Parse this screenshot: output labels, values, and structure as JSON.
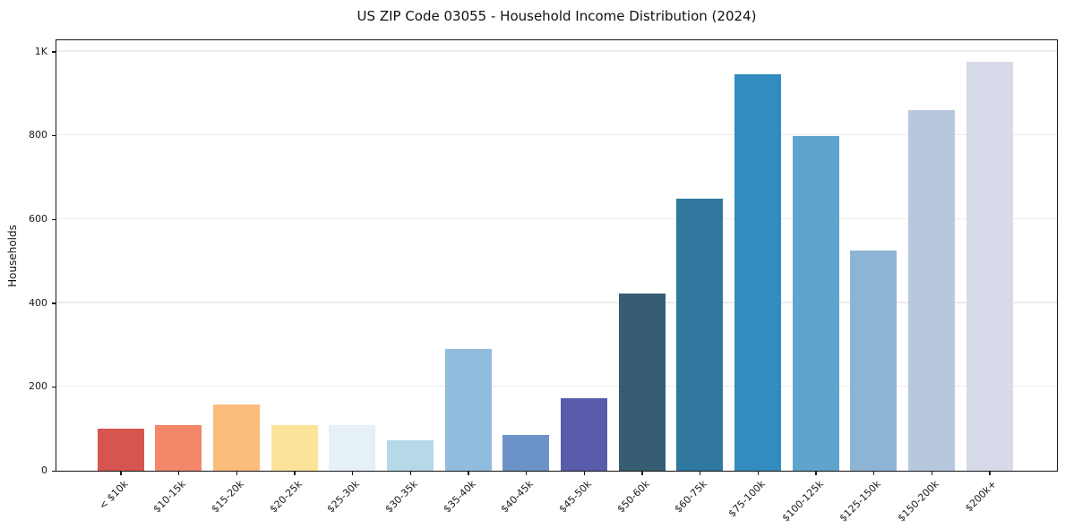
{
  "chart_data": {
    "type": "bar",
    "title": "US ZIP Code 03055 - Household Income Distribution (2024)",
    "xlabel": "",
    "ylabel": "Households",
    "categories": [
      "< $10k",
      "$10-15k",
      "$15-20k",
      "$20-25k",
      "$25-30k",
      "$30-35k",
      "$35-40k",
      "$40-45k",
      "$45-50k",
      "$50-60k",
      "$60-75k",
      "$75-100k",
      "$100-125k",
      "$125-150k",
      "$150-200k",
      "$200k+"
    ],
    "values": [
      100,
      108,
      157,
      110,
      108,
      72,
      291,
      85,
      172,
      423,
      649,
      947,
      799,
      526,
      860,
      976
    ],
    "bar_colors": [
      "#d6564f",
      "#f4876a",
      "#fbbc7c",
      "#fde299",
      "#e6f1f7",
      "#b5d9e9",
      "#90bcdd",
      "#6b93c7",
      "#5a5cab",
      "#365d72",
      "#30789d",
      "#338cc0",
      "#5ea4cd",
      "#8db4d4",
      "#b7c8de",
      "#d7dae8"
    ],
    "ylim": [
      0,
      1031
    ],
    "yticks": [
      {
        "value": 0,
        "label": "0"
      },
      {
        "value": 200,
        "label": "200"
      },
      {
        "value": 400,
        "label": "400"
      },
      {
        "value": 600,
        "label": "600"
      },
      {
        "value": 800,
        "label": "800"
      },
      {
        "value": 1000,
        "label": "1K"
      }
    ],
    "grid": "horizontal",
    "grid_color": "#ebebeb",
    "spine_color": "#151515",
    "background": "#ffffff",
    "legend": "none"
  }
}
